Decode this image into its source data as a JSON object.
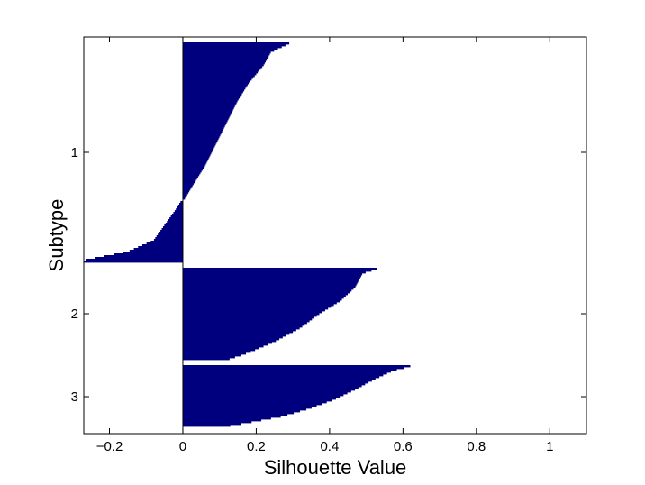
{
  "chart_data": {
    "type": "bar",
    "orientation": "horizontal",
    "xlabel": "Silhouette Value",
    "ylabel": "Subtype",
    "xlim": [
      -0.27,
      1.1
    ],
    "xticks": [
      -0.2,
      0,
      0.2,
      0.4,
      0.6,
      0.8,
      1
    ],
    "xtick_labels": [
      "−0.2",
      "0",
      "0.2",
      "0.4",
      "0.6",
      "0.8",
      "1"
    ],
    "yticks": [
      "1",
      "2",
      "3"
    ],
    "bar_color": "#00007f",
    "grid": false,
    "clusters": [
      {
        "name": "1",
        "profile": [
          [
            0,
            0.29
          ],
          [
            0.04,
            0.24
          ],
          [
            0.1,
            0.22
          ],
          [
            0.18,
            0.18
          ],
          [
            0.26,
            0.15
          ],
          [
            0.36,
            0.12
          ],
          [
            0.46,
            0.09
          ],
          [
            0.56,
            0.06
          ],
          [
            0.64,
            0.03
          ],
          [
            0.71,
            0.005
          ],
          [
            0.72,
            -0.005
          ],
          [
            0.76,
            -0.02
          ],
          [
            0.83,
            -0.05
          ],
          [
            0.9,
            -0.08
          ],
          [
            0.95,
            -0.15
          ],
          [
            0.99,
            -0.27
          ],
          [
            1.0,
            -0.27
          ]
        ]
      },
      {
        "name": "2",
        "profile": [
          [
            0,
            0.53
          ],
          [
            0.05,
            0.49
          ],
          [
            0.2,
            0.47
          ],
          [
            0.35,
            0.43
          ],
          [
            0.5,
            0.37
          ],
          [
            0.65,
            0.32
          ],
          [
            0.8,
            0.25
          ],
          [
            0.92,
            0.18
          ],
          [
            1.0,
            0.12
          ]
        ]
      },
      {
        "name": "3",
        "profile": [
          [
            0,
            0.62
          ],
          [
            0.08,
            0.57
          ],
          [
            0.22,
            0.52
          ],
          [
            0.38,
            0.47
          ],
          [
            0.55,
            0.41
          ],
          [
            0.7,
            0.34
          ],
          [
            0.82,
            0.27
          ],
          [
            0.92,
            0.18
          ],
          [
            1.0,
            0.1
          ]
        ]
      }
    ]
  }
}
